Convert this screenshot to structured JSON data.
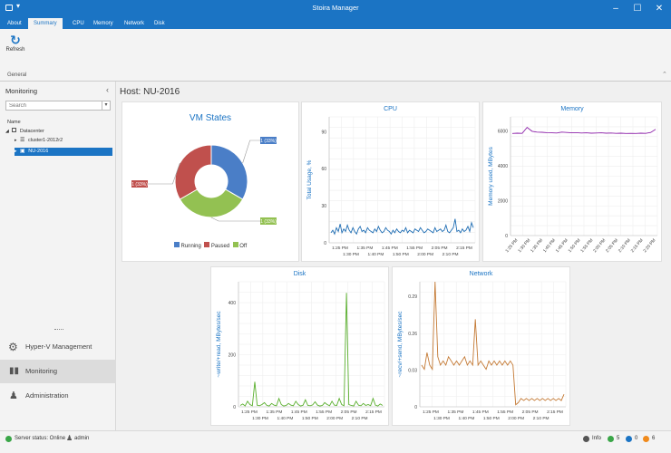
{
  "app": {
    "title": "Stoira Manager"
  },
  "menu_tabs": [
    {
      "label": "About"
    },
    {
      "label": "Summary"
    },
    {
      "label": "CPU"
    },
    {
      "label": "Memory"
    },
    {
      "label": "Network"
    },
    {
      "label": "Disk"
    }
  ],
  "ribbon": {
    "refresh_label": "Refresh",
    "group_label": "General"
  },
  "sidebar": {
    "title": "Monitoring",
    "search_placeholder": "Search",
    "tree_header": "Name",
    "tree": [
      {
        "label": "Datacenter"
      },
      {
        "label": "cluster1-2012r2"
      },
      {
        "label": "NU-2016"
      }
    ],
    "nav": [
      {
        "label": "Hyper-V Management"
      },
      {
        "label": "Monitoring"
      },
      {
        "label": "Administration"
      }
    ]
  },
  "main": {
    "host_title": "Host: NU-2016"
  },
  "vm_states": {
    "title": "VM States",
    "slices": [
      {
        "label": "1 (33%)",
        "value": 33,
        "color": "#4a7ec7",
        "name": "Running"
      },
      {
        "label": "1 (33%)",
        "value": 33,
        "color": "#93c152",
        "name": "Off"
      },
      {
        "label": "1 (33%)",
        "value": 33,
        "color": "#c0504d",
        "name": "Paused"
      }
    ],
    "legend": [
      {
        "label": "Running",
        "color": "#4a7ec7"
      },
      {
        "label": "Paused",
        "color": "#c0504d"
      },
      {
        "label": "Off",
        "color": "#93c152"
      }
    ]
  },
  "chart_data": [
    {
      "type": "line",
      "title": "CPU",
      "ylabel": "Total Usage, %",
      "ylim": [
        0,
        100
      ],
      "yticks": [
        "0",
        "30",
        "60",
        "90"
      ],
      "xticks_top": [
        "1:25 PM",
        "1:35 PM",
        "1:45 PM",
        "1:55 PM",
        "2:05 PM",
        "2:15 PM"
      ],
      "xticks_bottom": [
        "1:30 PM",
        "1:40 PM",
        "1:50 PM",
        "2:00 PM",
        "2:10 PM"
      ],
      "color": "#1f6db3",
      "grid": true,
      "values": [
        8,
        10,
        7,
        12,
        9,
        15,
        8,
        11,
        9,
        14,
        10,
        8,
        12,
        9,
        7,
        11,
        13,
        9,
        10,
        8,
        12,
        10,
        9,
        8,
        11,
        9,
        13,
        10,
        8,
        9,
        12,
        10,
        9,
        7,
        10,
        8,
        11,
        9,
        8,
        10,
        9,
        12,
        8,
        10,
        9,
        8,
        11,
        10,
        9,
        12,
        10,
        8,
        9,
        11,
        10,
        9,
        8,
        12,
        9,
        10,
        11,
        9,
        10,
        14,
        9,
        8,
        10,
        12,
        19,
        9,
        10,
        8,
        11,
        9,
        10,
        13,
        9,
        16,
        12
      ]
    },
    {
      "type": "line",
      "title": "Memory",
      "ylabel": "Memory used, MBytes",
      "ylim": [
        0,
        7000
      ],
      "yticks": [
        "0",
        "2000",
        "4000",
        "6000"
      ],
      "xticks": [
        "1:25 PM",
        "1:30 PM",
        "1:35 PM",
        "1:40 PM",
        "1:45 PM",
        "1:50 PM",
        "1:55 PM",
        "2:00 PM",
        "2:05 PM",
        "2:10 PM",
        "2:15 PM",
        "2:20 PM"
      ],
      "color": "#8e24aa",
      "grid": true,
      "values": [
        6020,
        6040,
        6030,
        6380,
        6150,
        6100,
        6090,
        6070,
        6060,
        6050,
        6100,
        6080,
        6060,
        6070,
        6050,
        6060,
        6040,
        6050,
        6060,
        6040,
        6050,
        6030,
        6040,
        6020,
        6030,
        6020,
        6040,
        6030,
        6080,
        6260
      ]
    },
    {
      "type": "line",
      "title": "Disk",
      "ylabel": "~write/+read, MBytes/sec",
      "ylim": [
        0,
        450
      ],
      "yticks": [
        "0",
        "200",
        "400"
      ],
      "xticks_top": [
        "1:25 PM",
        "1:35 PM",
        "1:45 PM",
        "1:55 PM",
        "2:05 PM",
        "2:15 PM"
      ],
      "xticks_bottom": [
        "1:30 PM",
        "1:40 PM",
        "1:50 PM",
        "2:00 PM",
        "2:10 PM"
      ],
      "color": "#5aaf2e",
      "grid": true,
      "values": [
        5,
        10,
        3,
        20,
        8,
        4,
        90,
        6,
        4,
        8,
        15,
        5,
        3,
        12,
        6,
        4,
        30,
        8,
        3,
        5,
        12,
        6,
        4,
        20,
        8,
        3,
        6,
        25,
        5,
        4,
        7,
        18,
        6,
        3,
        5,
        15,
        8,
        4,
        20,
        6,
        5,
        30,
        8,
        4,
        410,
        8,
        5,
        3,
        20,
        6,
        4,
        12,
        5,
        8,
        4,
        30,
        6,
        3,
        10,
        5
      ]
    },
    {
      "type": "line",
      "title": "Network",
      "ylabel": "~recv/+send, MBytes/sec",
      "ylim": [
        0,
        0.3
      ],
      "yticks": [
        "0",
        "0.03",
        "0.26",
        "0.29"
      ],
      "xticks_top": [
        "1:25 PM",
        "1:35 PM",
        "1:45 PM",
        "1:55 PM",
        "2:05 PM",
        "2:15 PM"
      ],
      "xticks_bottom": [
        "1:30 PM",
        "1:40 PM",
        "1:50 PM",
        "2:00 PM",
        "2:10 PM"
      ],
      "color": "#c47a35",
      "grid": true,
      "values": [
        0.1,
        0.09,
        0.13,
        0.1,
        0.09,
        0.3,
        0.12,
        0.1,
        0.11,
        0.1,
        0.12,
        0.11,
        0.1,
        0.11,
        0.1,
        0.11,
        0.12,
        0.1,
        0.11,
        0.1,
        0.21,
        0.1,
        0.11,
        0.1,
        0.09,
        0.11,
        0.1,
        0.11,
        0.1,
        0.11,
        0.1,
        0.11,
        0.1,
        0.11,
        0.1,
        0.005,
        0.01,
        0.02,
        0.015,
        0.02,
        0.015,
        0.02,
        0.015,
        0.02,
        0.015,
        0.02,
        0.015,
        0.02,
        0.015,
        0.02,
        0.015,
        0.02,
        0.015,
        0.03
      ]
    }
  ],
  "statusbar": {
    "server_status": "Server status: Online",
    "user": "admin",
    "info_label": "Info",
    "ok_count": "5",
    "info_count": "0",
    "warn_count": "6"
  }
}
